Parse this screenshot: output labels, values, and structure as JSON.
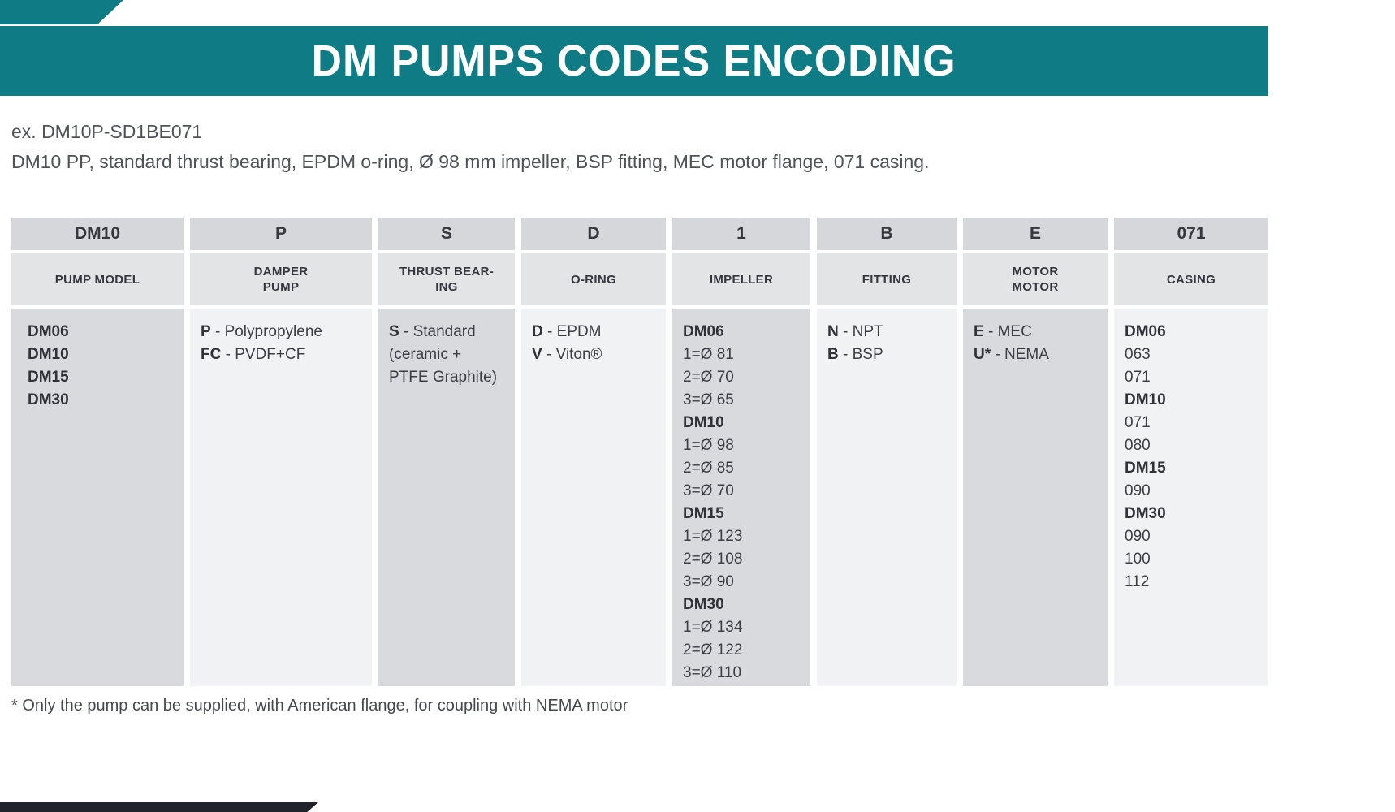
{
  "page": {
    "title": "DM PUMPS CODES ENCODING",
    "example_label": "ex. DM10P-SD1BE071",
    "example_description": "DM10 PP, standard thrust bearing, EPDM o-ring, Ø 98 mm impeller, BSP fitting, MEC motor flange, 071 casing.",
    "footnote": "* Only the pump can be supplied, with American flange, for coupling with NEMA motor"
  },
  "colors": {
    "accent_teal": "#0f7b85",
    "header_cell": "#d5d7da",
    "subheader_cell": "#e2e4e6",
    "body_cell_dark": "#d8dade",
    "body_cell_light": "#f1f2f4",
    "text_dark": "#3b3e44",
    "footer_bar": "#20232b"
  },
  "table": {
    "columns": [
      {
        "code": "DM10",
        "label_lines": [
          "PUMP MODEL"
        ],
        "entries": [
          {
            "b": "DM06",
            "t": ""
          },
          {
            "b": "DM10",
            "t": ""
          },
          {
            "b": "DM15",
            "t": ""
          },
          {
            "b": "DM30",
            "t": ""
          }
        ]
      },
      {
        "code": "P",
        "label_lines": [
          "DAMPER",
          "PUMP"
        ],
        "entries": [
          {
            "b": "P",
            "t": " - Polypropylene"
          },
          {
            "b": "FC",
            "t": " - PVDF+CF"
          }
        ]
      },
      {
        "code": "S",
        "label_lines": [
          "THRUST BEAR-",
          "ING"
        ],
        "entries": [
          {
            "b": "S",
            "t": " - Standard"
          },
          {
            "b": "",
            "t": "(ceramic +"
          },
          {
            "b": "",
            "t": "PTFE Graphite)"
          }
        ]
      },
      {
        "code": "D",
        "label_lines": [
          "O-RING"
        ],
        "entries": [
          {
            "b": "D",
            "t": " - EPDM"
          },
          {
            "b": "V",
            "t": " - Viton®"
          }
        ]
      },
      {
        "code": "1",
        "label_lines": [
          "IMPELLER"
        ],
        "entries": [
          {
            "b": "DM06",
            "t": ""
          },
          {
            "b": "",
            "t": "1=Ø 81"
          },
          {
            "b": "",
            "t": "2=Ø 70"
          },
          {
            "b": "",
            "t": "3=Ø 65"
          },
          {
            "b": "DM10",
            "t": ""
          },
          {
            "b": "",
            "t": "1=Ø 98"
          },
          {
            "b": "",
            "t": "2=Ø 85"
          },
          {
            "b": "",
            "t": "3=Ø 70"
          },
          {
            "b": "DM15",
            "t": ""
          },
          {
            "b": "",
            "t": "1=Ø 123"
          },
          {
            "b": "",
            "t": "2=Ø 108"
          },
          {
            "b": "",
            "t": "3=Ø 90"
          },
          {
            "b": "DM30",
            "t": ""
          },
          {
            "b": "",
            "t": "1=Ø 134"
          },
          {
            "b": "",
            "t": "2=Ø 122"
          },
          {
            "b": "",
            "t": "3=Ø 110"
          }
        ]
      },
      {
        "code": "B",
        "label_lines": [
          "FITTING"
        ],
        "entries": [
          {
            "b": "N",
            "t": " - NPT"
          },
          {
            "b": "B",
            "t": " - BSP"
          }
        ]
      },
      {
        "code": "E",
        "label_lines": [
          "MOTOR",
          "MOTOR"
        ],
        "entries": [
          {
            "b": "E",
            "t": " - MEC"
          },
          {
            "b": "U*",
            "t": " - NEMA"
          }
        ]
      },
      {
        "code": "071",
        "label_lines": [
          "CASING"
        ],
        "entries": [
          {
            "b": "DM06",
            "t": ""
          },
          {
            "b": "",
            "t": "063"
          },
          {
            "b": "",
            "t": "071"
          },
          {
            "b": "DM10",
            "t": ""
          },
          {
            "b": "",
            "t": "071"
          },
          {
            "b": "",
            "t": "080"
          },
          {
            "b": "DM15",
            "t": ""
          },
          {
            "b": "",
            "t": "090"
          },
          {
            "b": "DM30",
            "t": ""
          },
          {
            "b": "",
            "t": "090"
          },
          {
            "b": "",
            "t": "100"
          },
          {
            "b": "",
            "t": "112"
          }
        ]
      }
    ]
  }
}
